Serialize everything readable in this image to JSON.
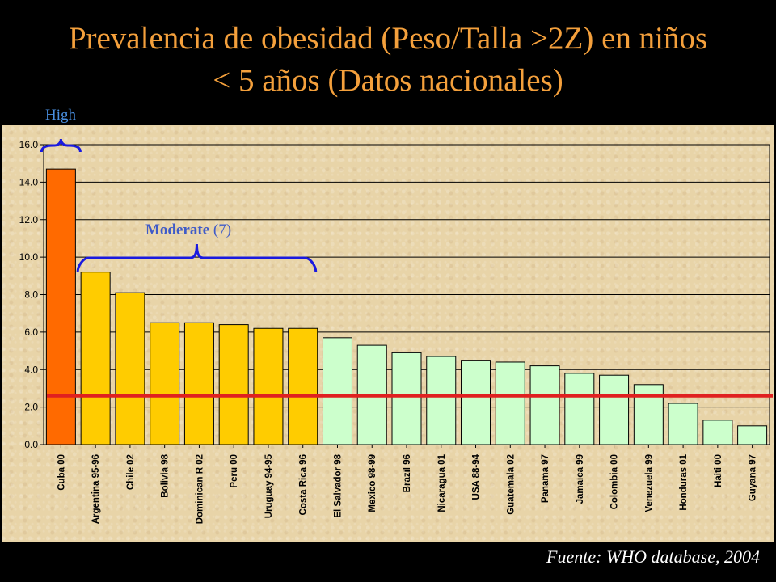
{
  "title": {
    "line1": "Prevalencia de obesidad (Peso/Talla >2Z) en niños",
    "line2": "< 5 años (Datos nacionales)"
  },
  "annotations": {
    "high": "High",
    "moderate_word": "Moderate",
    "moderate_count": "(7)"
  },
  "source": "Fuente: WHO database, 2004",
  "colors": {
    "high_bar": "#ff6a00",
    "moderate_bar": "#ffcc00",
    "low_bar": "#ccffcc",
    "reference_line": "#e02020",
    "bracket": "#1a1adf",
    "title": "#f4a03c",
    "high_label": "#4a90e2"
  },
  "chart_data": {
    "type": "bar",
    "categories": [
      "Cuba 00",
      "Argentina 95-96",
      "Chile 02",
      "Bolivia 98",
      "Dominican R 02",
      "Peru 00",
      "Uruguay 94-95",
      "Costa Rica 96",
      "El Salvador 98",
      "Mexico 98-99",
      "Brazil 96",
      "Nicaragua 01",
      "USA 88-94",
      "Guatemala 02",
      "Panama 97",
      "Jamaica 99",
      "Colombia 00",
      "Venezuela 99",
      "Honduras 01",
      "Haiti 00",
      "Guyana 97"
    ],
    "values": [
      14.7,
      9.2,
      8.1,
      6.5,
      6.5,
      6.4,
      6.2,
      6.2,
      5.7,
      5.3,
      4.9,
      4.7,
      4.5,
      4.4,
      4.2,
      3.8,
      3.7,
      3.2,
      2.2,
      1.3,
      1.0
    ],
    "groups": [
      "high",
      "moderate",
      "moderate",
      "moderate",
      "moderate",
      "moderate",
      "moderate",
      "moderate",
      "low",
      "low",
      "low",
      "low",
      "low",
      "low",
      "low",
      "low",
      "low",
      "low",
      "low",
      "low",
      "low"
    ],
    "yticks": [
      "0.0",
      "2.0",
      "4.0",
      "6.0",
      "8.0",
      "10.0",
      "12.0",
      "14.0",
      "16.0"
    ],
    "ylim": [
      0,
      16
    ],
    "reference_line": 2.6,
    "grid": true,
    "title": "",
    "xlabel": "",
    "ylabel": ""
  }
}
